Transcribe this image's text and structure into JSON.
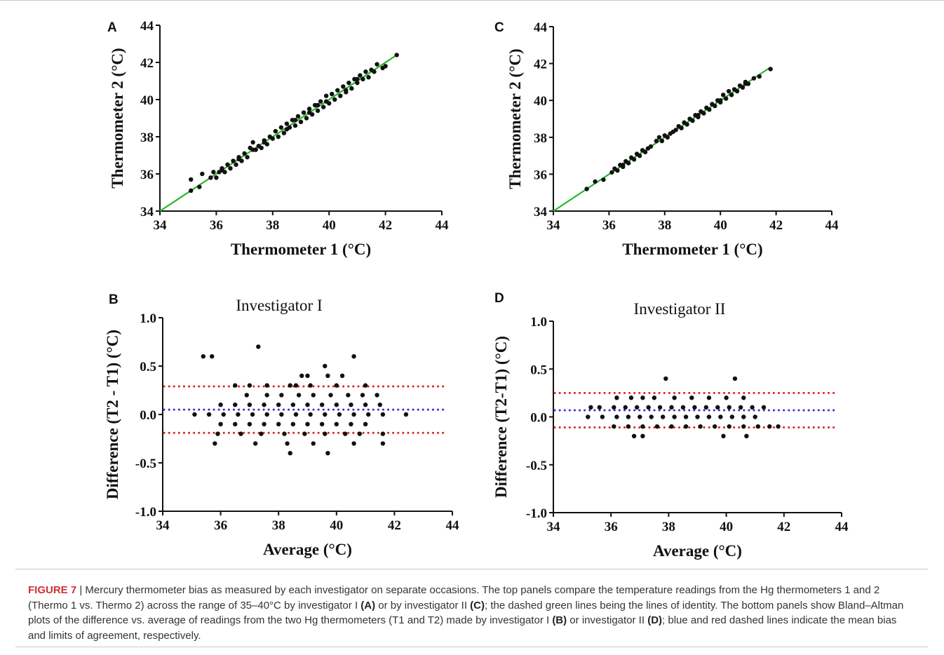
{
  "chart_data": [
    {
      "panel": "A",
      "type": "scatter",
      "title": "",
      "xlabel": "Thermometer 1 (°C)",
      "ylabel": "Thermometer 2 (°C)",
      "xlim": [
        34,
        44
      ],
      "ylim": [
        34,
        44
      ],
      "xticks": [
        "34",
        "36",
        "38",
        "40",
        "42",
        "44"
      ],
      "yticks": [
        "34",
        "36",
        "38",
        "40",
        "42",
        "44"
      ],
      "grid": false,
      "line_of_identity": {
        "x": [
          34,
          42.4
        ],
        "y": [
          34,
          42.4
        ],
        "color": "#2ab52a"
      },
      "points": [
        [
          35.1,
          35.1
        ],
        [
          35.1,
          35.7
        ],
        [
          35.4,
          35.3
        ],
        [
          35.5,
          36.0
        ],
        [
          35.8,
          35.8
        ],
        [
          35.9,
          36.1
        ],
        [
          36.0,
          35.8
        ],
        [
          36.1,
          36.1
        ],
        [
          36.2,
          36.3
        ],
        [
          36.3,
          36.1
        ],
        [
          36.4,
          36.5
        ],
        [
          36.5,
          36.3
        ],
        [
          36.6,
          36.7
        ],
        [
          36.7,
          36.5
        ],
        [
          36.8,
          36.9
        ],
        [
          36.9,
          36.7
        ],
        [
          37.0,
          37.1
        ],
        [
          37.1,
          36.9
        ],
        [
          37.2,
          37.4
        ],
        [
          37.3,
          37.7
        ],
        [
          37.4,
          37.3
        ],
        [
          37.5,
          37.5
        ],
        [
          37.6,
          37.4
        ],
        [
          37.7,
          37.8
        ],
        [
          37.8,
          37.6
        ],
        [
          37.9,
          38.0
        ],
        [
          38.0,
          37.9
        ],
        [
          38.1,
          38.3
        ],
        [
          38.2,
          38.0
        ],
        [
          38.3,
          38.5
        ],
        [
          38.4,
          38.2
        ],
        [
          38.5,
          38.7
        ],
        [
          38.6,
          38.5
        ],
        [
          38.7,
          38.9
        ],
        [
          38.8,
          38.6
        ],
        [
          38.9,
          39.1
        ],
        [
          39.0,
          38.8
        ],
        [
          39.1,
          39.3
        ],
        [
          39.2,
          39.0
        ],
        [
          39.3,
          39.5
        ],
        [
          39.4,
          39.2
        ],
        [
          39.5,
          39.7
        ],
        [
          39.6,
          39.4
        ],
        [
          39.7,
          39.9
        ],
        [
          39.8,
          39.6
        ],
        [
          39.9,
          40.2
        ],
        [
          40.0,
          39.8
        ],
        [
          40.1,
          40.3
        ],
        [
          40.2,
          40.0
        ],
        [
          40.3,
          40.5
        ],
        [
          40.4,
          40.2
        ],
        [
          40.5,
          40.7
        ],
        [
          40.6,
          40.5
        ],
        [
          40.7,
          40.9
        ],
        [
          40.8,
          40.6
        ],
        [
          40.9,
          41.1
        ],
        [
          41.0,
          40.9
        ],
        [
          41.1,
          41.3
        ],
        [
          41.2,
          41.1
        ],
        [
          41.3,
          41.5
        ],
        [
          41.4,
          41.2
        ],
        [
          41.5,
          41.6
        ],
        [
          41.6,
          41.5
        ],
        [
          41.7,
          41.9
        ],
        [
          41.9,
          41.7
        ],
        [
          42.0,
          41.8
        ],
        [
          42.4,
          42.4
        ],
        [
          37.3,
          37.3
        ],
        [
          38.5,
          38.4
        ],
        [
          39.6,
          39.7
        ],
        [
          40.6,
          40.4
        ],
        [
          36.2,
          36.2
        ],
        [
          37.7,
          37.7
        ],
        [
          38.8,
          38.9
        ],
        [
          39.9,
          39.9
        ],
        [
          41.0,
          41.1
        ],
        [
          36.8,
          36.8
        ],
        [
          39.3,
          39.3
        ]
      ]
    },
    {
      "panel": "B",
      "type": "scatter",
      "title": "Investigator I",
      "xlabel": "Average (°C)",
      "ylabel": "Difference (T2 - T1) (°C)",
      "xlim": [
        34,
        44
      ],
      "ylim": [
        -1.0,
        1.0
      ],
      "xticks": [
        "34",
        "36",
        "38",
        "40",
        "42",
        "44"
      ],
      "yticks": [
        "1.0",
        "0.5",
        "0.0",
        "-0.5",
        "-1.0"
      ],
      "grid": false,
      "mean_bias": {
        "y": 0.05,
        "color": "#2f2fd8"
      },
      "limits_of_agreement": {
        "y": [
          0.29,
          -0.19
        ],
        "color": "#e02020"
      },
      "points": [
        [
          35.4,
          0.6
        ],
        [
          35.7,
          0.6
        ],
        [
          37.3,
          0.7
        ],
        [
          38.8,
          0.4
        ],
        [
          39.0,
          0.4
        ],
        [
          39.6,
          0.5
        ],
        [
          40.2,
          0.4
        ],
        [
          40.6,
          0.6
        ],
        [
          39.7,
          0.4
        ],
        [
          38.6,
          0.3
        ],
        [
          36.5,
          0.3
        ],
        [
          37.0,
          0.3
        ],
        [
          37.6,
          0.3
        ],
        [
          38.4,
          0.3
        ],
        [
          39.1,
          0.3
        ],
        [
          40.0,
          0.3
        ],
        [
          41.0,
          0.3
        ],
        [
          36.9,
          0.2
        ],
        [
          37.6,
          0.2
        ],
        [
          38.1,
          0.2
        ],
        [
          38.7,
          0.2
        ],
        [
          39.2,
          0.2
        ],
        [
          39.8,
          0.2
        ],
        [
          40.4,
          0.2
        ],
        [
          40.9,
          0.2
        ],
        [
          41.4,
          0.2
        ],
        [
          36.0,
          0.1
        ],
        [
          36.5,
          0.1
        ],
        [
          37.0,
          0.1
        ],
        [
          37.5,
          0.1
        ],
        [
          38.0,
          0.1
        ],
        [
          38.5,
          0.1
        ],
        [
          39.0,
          0.1
        ],
        [
          39.5,
          0.1
        ],
        [
          40.0,
          0.1
        ],
        [
          40.5,
          0.1
        ],
        [
          41.0,
          0.1
        ],
        [
          41.5,
          0.1
        ],
        [
          35.1,
          0.0
        ],
        [
          35.6,
          0.0
        ],
        [
          36.1,
          0.0
        ],
        [
          36.6,
          0.0
        ],
        [
          37.1,
          0.0
        ],
        [
          37.6,
          0.0
        ],
        [
          38.1,
          0.0
        ],
        [
          38.6,
          0.0
        ],
        [
          39.1,
          0.0
        ],
        [
          39.6,
          0.0
        ],
        [
          40.1,
          0.0
        ],
        [
          40.6,
          0.0
        ],
        [
          41.1,
          0.0
        ],
        [
          41.6,
          0.0
        ],
        [
          42.4,
          0.0
        ],
        [
          36.0,
          -0.1
        ],
        [
          36.5,
          -0.1
        ],
        [
          37.0,
          -0.1
        ],
        [
          37.5,
          -0.1
        ],
        [
          38.0,
          -0.1
        ],
        [
          38.5,
          -0.1
        ],
        [
          39.0,
          -0.1
        ],
        [
          39.5,
          -0.1
        ],
        [
          40.0,
          -0.1
        ],
        [
          40.5,
          -0.1
        ],
        [
          41.0,
          -0.1
        ],
        [
          35.9,
          -0.2
        ],
        [
          36.7,
          -0.2
        ],
        [
          37.4,
          -0.2
        ],
        [
          38.2,
          -0.2
        ],
        [
          38.9,
          -0.2
        ],
        [
          39.6,
          -0.2
        ],
        [
          40.3,
          -0.2
        ],
        [
          40.8,
          -0.2
        ],
        [
          41.6,
          -0.2
        ],
        [
          35.8,
          -0.3
        ],
        [
          37.2,
          -0.3
        ],
        [
          38.3,
          -0.3
        ],
        [
          39.2,
          -0.3
        ],
        [
          40.6,
          -0.3
        ],
        [
          41.6,
          -0.3
        ],
        [
          38.4,
          -0.4
        ],
        [
          39.7,
          -0.4
        ]
      ]
    },
    {
      "panel": "C",
      "type": "scatter",
      "title": "",
      "xlabel": "Thermometer 1 (°C)",
      "ylabel": "Thermometer 2 (°C)",
      "xlim": [
        34,
        44
      ],
      "ylim": [
        34,
        44
      ],
      "xticks": [
        "34",
        "36",
        "38",
        "40",
        "42",
        "44"
      ],
      "yticks": [
        "34",
        "36",
        "38",
        "40",
        "42",
        "44"
      ],
      "grid": false,
      "line_of_identity": {
        "x": [
          34,
          41.8
        ],
        "y": [
          34,
          41.8
        ],
        "color": "#2ab52a"
      },
      "points": [
        [
          35.2,
          35.2
        ],
        [
          35.5,
          35.6
        ],
        [
          35.8,
          35.7
        ],
        [
          36.1,
          36.1
        ],
        [
          36.2,
          36.3
        ],
        [
          36.3,
          36.2
        ],
        [
          36.4,
          36.5
        ],
        [
          36.5,
          36.4
        ],
        [
          36.6,
          36.7
        ],
        [
          36.7,
          36.6
        ],
        [
          36.8,
          36.9
        ],
        [
          36.9,
          36.8
        ],
        [
          37.0,
          37.1
        ],
        [
          37.1,
          37.0
        ],
        [
          37.2,
          37.3
        ],
        [
          37.3,
          37.2
        ],
        [
          37.5,
          37.5
        ],
        [
          37.7,
          37.8
        ],
        [
          37.8,
          38.0
        ],
        [
          37.9,
          37.8
        ],
        [
          38.0,
          38.1
        ],
        [
          38.1,
          38.0
        ],
        [
          38.2,
          38.2
        ],
        [
          38.4,
          38.4
        ],
        [
          38.5,
          38.6
        ],
        [
          38.6,
          38.5
        ],
        [
          38.7,
          38.8
        ],
        [
          38.8,
          38.7
        ],
        [
          38.9,
          39.0
        ],
        [
          39.0,
          38.9
        ],
        [
          39.1,
          39.2
        ],
        [
          39.2,
          39.1
        ],
        [
          39.3,
          39.4
        ],
        [
          39.4,
          39.3
        ],
        [
          39.5,
          39.6
        ],
        [
          39.6,
          39.5
        ],
        [
          39.7,
          39.8
        ],
        [
          39.8,
          39.7
        ],
        [
          39.9,
          40.0
        ],
        [
          40.0,
          39.9
        ],
        [
          40.1,
          40.3
        ],
        [
          40.2,
          40.1
        ],
        [
          40.3,
          40.5
        ],
        [
          40.4,
          40.3
        ],
        [
          40.5,
          40.6
        ],
        [
          40.6,
          40.5
        ],
        [
          40.7,
          40.8
        ],
        [
          40.8,
          40.7
        ],
        [
          40.9,
          41.0
        ],
        [
          41.0,
          40.9
        ],
        [
          41.2,
          41.2
        ],
        [
          41.4,
          41.3
        ],
        [
          41.8,
          41.7
        ],
        [
          36.5,
          36.5
        ],
        [
          37.4,
          37.4
        ],
        [
          38.3,
          38.3
        ],
        [
          39.2,
          39.2
        ],
        [
          40.0,
          40.0
        ],
        [
          40.9,
          40.9
        ]
      ]
    },
    {
      "panel": "D",
      "type": "scatter",
      "title": "Investigator II",
      "xlabel": "Average (°C)",
      "ylabel": "Difference (T2-T1) (°C)",
      "xlim": [
        34,
        44
      ],
      "ylim": [
        -1.0,
        1.0
      ],
      "xticks": [
        "34",
        "36",
        "38",
        "40",
        "42",
        "44"
      ],
      "yticks": [
        "1.0",
        "0.5",
        "0.0",
        "-0.5",
        "-1.0"
      ],
      "grid": false,
      "mean_bias": {
        "y": 0.07,
        "color": "#2f2fd8"
      },
      "limits_of_agreement": {
        "y": [
          0.25,
          -0.11
        ],
        "color": "#e02020"
      },
      "points": [
        [
          37.9,
          0.4
        ],
        [
          40.3,
          0.4
        ],
        [
          36.2,
          0.2
        ],
        [
          36.7,
          0.2
        ],
        [
          37.1,
          0.2
        ],
        [
          37.5,
          0.2
        ],
        [
          38.2,
          0.2
        ],
        [
          38.8,
          0.2
        ],
        [
          39.4,
          0.2
        ],
        [
          40.0,
          0.2
        ],
        [
          40.6,
          0.2
        ],
        [
          35.3,
          0.1
        ],
        [
          35.6,
          0.1
        ],
        [
          36.1,
          0.1
        ],
        [
          36.5,
          0.1
        ],
        [
          36.9,
          0.1
        ],
        [
          37.3,
          0.1
        ],
        [
          37.7,
          0.1
        ],
        [
          38.1,
          0.1
        ],
        [
          38.5,
          0.1
        ],
        [
          38.9,
          0.1
        ],
        [
          39.3,
          0.1
        ],
        [
          39.7,
          0.1
        ],
        [
          40.1,
          0.1
        ],
        [
          40.5,
          0.1
        ],
        [
          40.9,
          0.1
        ],
        [
          41.3,
          0.1
        ],
        [
          35.2,
          0.0
        ],
        [
          35.7,
          0.0
        ],
        [
          36.2,
          0.0
        ],
        [
          36.6,
          0.0
        ],
        [
          37.0,
          0.0
        ],
        [
          37.4,
          0.0
        ],
        [
          37.8,
          0.0
        ],
        [
          38.2,
          0.0
        ],
        [
          38.6,
          0.0
        ],
        [
          39.0,
          0.0
        ],
        [
          39.4,
          0.0
        ],
        [
          39.8,
          0.0
        ],
        [
          40.2,
          0.0
        ],
        [
          40.6,
          0.0
        ],
        [
          41.0,
          0.0
        ],
        [
          36.1,
          -0.1
        ],
        [
          36.6,
          -0.1
        ],
        [
          37.1,
          -0.1
        ],
        [
          37.6,
          -0.1
        ],
        [
          38.1,
          -0.1
        ],
        [
          38.6,
          -0.1
        ],
        [
          39.1,
          -0.1
        ],
        [
          39.6,
          -0.1
        ],
        [
          40.1,
          -0.1
        ],
        [
          40.6,
          -0.1
        ],
        [
          41.1,
          -0.1
        ],
        [
          41.5,
          -0.1
        ],
        [
          41.8,
          -0.1
        ],
        [
          36.8,
          -0.2
        ],
        [
          37.1,
          -0.2
        ],
        [
          39.9,
          -0.2
        ],
        [
          40.7,
          -0.2
        ]
      ]
    }
  ],
  "caption": {
    "figure_number": "FIGURE 7",
    "separator": " | ",
    "s1": "Mercury thermometer bias as measured by each investigator on separate occasions. The top panels compare the temperature readings from the Hg thermometers 1 and 2 (Thermo 1 vs. Thermo 2) across the range of 35–40°C by investigator I ",
    "ref_a": "(A)",
    "s2": " or by investigator II ",
    "ref_c": "(C)",
    "s3": "; the dashed green lines being the lines of identity. The bottom panels show Bland–Altman plots of the difference vs. average of readings from the two Hg thermometers (T1 and T2) made by investigator I ",
    "ref_b": "(B)",
    "s4": " or investigator II ",
    "ref_d": "(D)",
    "s5": "; blue and red dashed lines indicate the mean bias and limits of agreement, respectively."
  }
}
